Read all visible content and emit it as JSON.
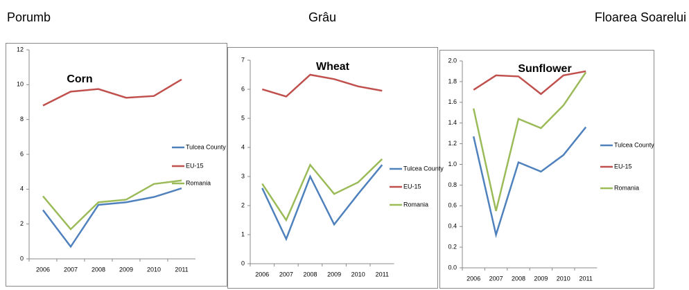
{
  "headings": [
    "Porumb",
    "Grâu",
    "Floarea Soarelui"
  ],
  "chart_data": [
    {
      "type": "line",
      "title": "Corn",
      "categories": [
        "2006",
        "2007",
        "2008",
        "2009",
        "2010",
        "2011"
      ],
      "ylim": [
        0,
        12
      ],
      "yticks": [
        0,
        2,
        4,
        6,
        8,
        10,
        12
      ],
      "series": [
        {
          "name": "Tulcea County",
          "color": "#4f81bd",
          "values": [
            2.8,
            0.7,
            3.1,
            3.25,
            3.55,
            4.05
          ]
        },
        {
          "name": "EU-15",
          "color": "#c0504d",
          "values": [
            8.8,
            9.6,
            9.75,
            9.25,
            9.35,
            10.3
          ]
        },
        {
          "name": "Romania",
          "color": "#9bbb59",
          "values": [
            3.6,
            1.7,
            3.25,
            3.4,
            4.3,
            4.5
          ]
        }
      ]
    },
    {
      "type": "line",
      "title": "Wheat",
      "categories": [
        "2006",
        "2007",
        "2008",
        "2009",
        "2010",
        "2011"
      ],
      "ylim": [
        0,
        7
      ],
      "yticks": [
        0,
        1,
        2,
        3,
        4,
        5,
        6,
        7
      ],
      "series": [
        {
          "name": "Tulcea County",
          "color": "#4f81bd",
          "values": [
            2.6,
            0.85,
            3.0,
            1.35,
            2.4,
            3.4
          ]
        },
        {
          "name": "EU-15",
          "color": "#c0504d",
          "values": [
            6.0,
            5.75,
            6.5,
            6.35,
            6.1,
            5.95
          ]
        },
        {
          "name": "Romania",
          "color": "#9bbb59",
          "values": [
            2.75,
            1.5,
            3.4,
            2.4,
            2.8,
            3.6
          ]
        }
      ]
    },
    {
      "type": "line",
      "title": "Sunflower",
      "categories": [
        "2006",
        "2007",
        "2008",
        "2009",
        "2010",
        "2011"
      ],
      "ylim": [
        0,
        2
      ],
      "yticks": [
        {
          "value": 0,
          "label": "0.0"
        },
        0.2,
        0.4,
        0.6,
        0.8,
        {
          "value": 1,
          "label": "1.0"
        },
        1.2,
        1.4,
        1.6,
        1.8,
        {
          "value": 2,
          "label": "2.0"
        }
      ],
      "series": [
        {
          "name": "Tulcea County",
          "color": "#4f81bd",
          "values": [
            1.27,
            0.32,
            1.02,
            0.93,
            1.09,
            1.36
          ]
        },
        {
          "name": "EU-15",
          "color": "#c0504d",
          "values": [
            1.72,
            1.86,
            1.85,
            1.68,
            1.86,
            1.9
          ]
        },
        {
          "name": "Romania",
          "color": "#9bbb59",
          "values": [
            1.54,
            0.55,
            1.44,
            1.35,
            1.57,
            1.89
          ]
        }
      ]
    }
  ]
}
